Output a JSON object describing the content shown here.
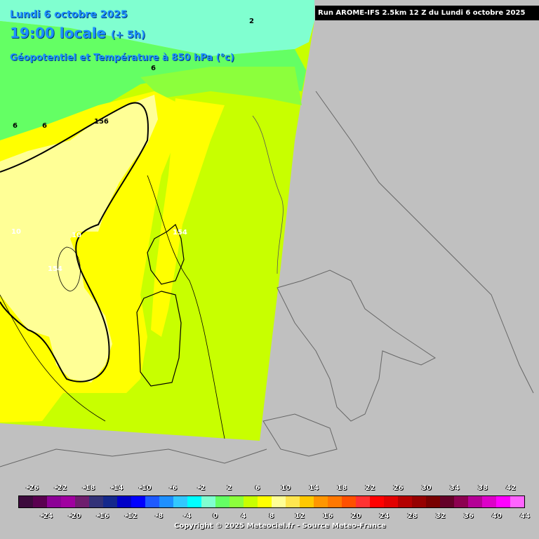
{
  "header": {
    "date": "Lundi 6 octobre 2025",
    "time": "19:00 locale",
    "time_offset": "(+ 5h)",
    "parameter": "Géopotentiel et Température à 850 hPa (°c)"
  },
  "run_label": "Run AROME-IFS 2.5km 12 Z du Lundi 6 octobre 2025",
  "copyright": "Copyright © 2025 Meteociel.fr - Source Meteo-France",
  "map_labels": [
    {
      "id": "contour-label-2",
      "text": "2"
    },
    {
      "id": "contour-label-6-north",
      "text": "6"
    },
    {
      "id": "contour-label-6-west-a",
      "text": "6"
    },
    {
      "id": "contour-label-6-west-b",
      "text": "6"
    },
    {
      "id": "contour-label-156",
      "text": "156"
    },
    {
      "id": "contour-label-10-a",
      "text": "10"
    },
    {
      "id": "contour-label-10-b",
      "text": "10"
    },
    {
      "id": "contour-label-154-a",
      "text": "154"
    },
    {
      "id": "contour-label-154-b",
      "text": "154"
    }
  ],
  "legend": {
    "colors": [
      "#3c0a3c",
      "#5a0050",
      "#8c0096",
      "#a000a0",
      "#6e1e6e",
      "#323278",
      "#14288c",
      "#0000c8",
      "#0000ff",
      "#1e5aff",
      "#1e90ff",
      "#32c8ff",
      "#00ffff",
      "#80ffd0",
      "#64ff64",
      "#8cff3c",
      "#c8ff00",
      "#ffff00",
      "#ffff96",
      "#ffe650",
      "#ffc800",
      "#ff9600",
      "#ff7800",
      "#ff5000",
      "#ff3232",
      "#ff0000",
      "#e10000",
      "#b40000",
      "#960000",
      "#780000",
      "#640028",
      "#8c0050",
      "#b40096",
      "#dc00c8",
      "#ff00ff",
      "#ff64ff"
    ],
    "top_labels": [
      "-26",
      "-22",
      "-18",
      "-14",
      "-10",
      "-6",
      "-2",
      "2",
      "6",
      "10",
      "14",
      "18",
      "22",
      "26",
      "30",
      "34",
      "38",
      "42"
    ],
    "bottom_labels": [
      "-24",
      "-20",
      "-16",
      "-12",
      "-8",
      "-4",
      "0",
      "4",
      "8",
      "12",
      "16",
      "20",
      "24",
      "28",
      "32",
      "36",
      "40",
      "44"
    ]
  }
}
